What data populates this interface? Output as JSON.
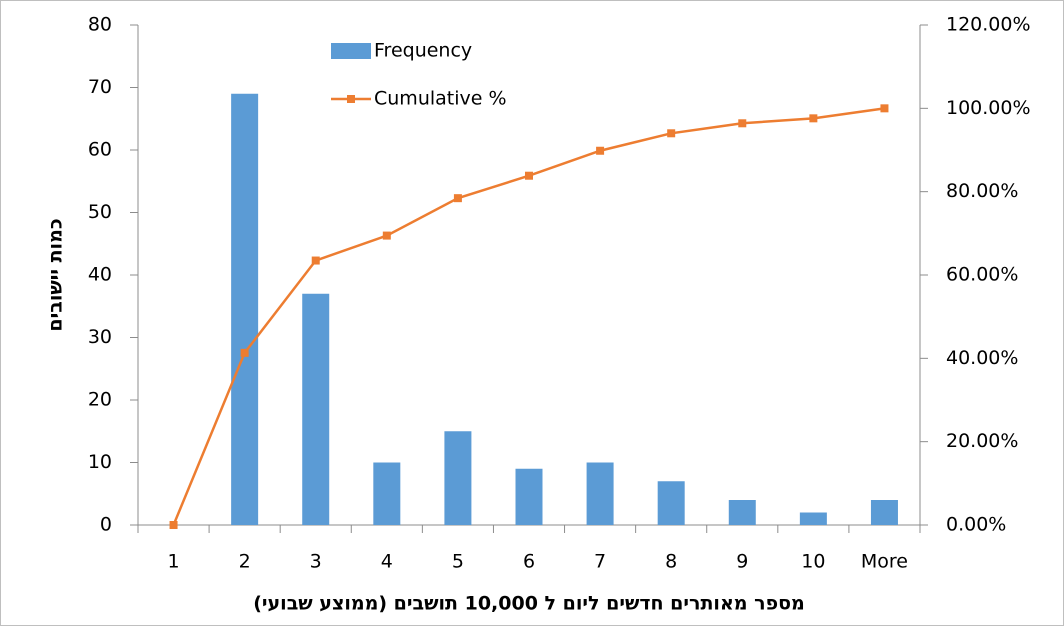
{
  "chart_data": {
    "type": "bar",
    "categories": [
      "1",
      "2",
      "3",
      "4",
      "5",
      "6",
      "7",
      "8",
      "9",
      "10",
      "More"
    ],
    "series": [
      {
        "name": "Frequency",
        "color": "#5b9bd5",
        "type": "bar",
        "values": [
          0,
          69,
          37,
          10,
          15,
          9,
          10,
          7,
          4,
          2,
          4
        ]
      },
      {
        "name": "Cumulative %",
        "color": "#ed7d31",
        "type": "line",
        "axis": "y2",
        "values": [
          0,
          41.32,
          63.47,
          69.46,
          78.44,
          83.83,
          89.82,
          94.01,
          96.41,
          97.6,
          100
        ]
      }
    ],
    "ylabel": "כמות יישובים",
    "xlabel": "מספר מאותרים חדשים ליום  ל 10,000 תושבים (ממוצע שבועי)",
    "ylim": [
      0,
      80
    ],
    "yticks": [
      0,
      10,
      20,
      30,
      40,
      50,
      60,
      70,
      80
    ],
    "y2lim": [
      0,
      120
    ],
    "y2ticks": [
      {
        "value": 0,
        "label": "0.00%"
      },
      {
        "value": 20,
        "label": "20.00%"
      },
      {
        "value": 40,
        "label": "40.00%"
      },
      {
        "value": 60,
        "label": "60.00%"
      },
      {
        "value": 80,
        "label": "80.00%"
      },
      {
        "value": 100,
        "label": "100.00%"
      },
      {
        "value": 120,
        "label": "120.00%"
      }
    ]
  }
}
